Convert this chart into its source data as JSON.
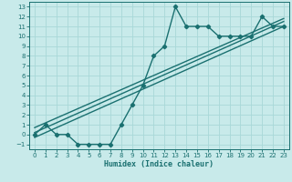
{
  "title": "",
  "xlabel": "Humidex (Indice chaleur)",
  "bg_color": "#c8eaea",
  "line_color": "#1a7070",
  "grid_color": "#a8d8d8",
  "xlim": [
    -0.5,
    23.5
  ],
  "ylim": [
    -1.5,
    13.5
  ],
  "xticks": [
    0,
    1,
    2,
    3,
    4,
    5,
    6,
    7,
    8,
    9,
    10,
    11,
    12,
    13,
    14,
    15,
    16,
    17,
    18,
    19,
    20,
    21,
    22,
    23
  ],
  "yticks": [
    -1,
    0,
    1,
    2,
    3,
    4,
    5,
    6,
    7,
    8,
    9,
    10,
    11,
    12,
    13
  ],
  "series1_x": [
    0,
    1,
    2,
    3,
    4,
    5,
    6,
    7,
    8,
    9,
    10,
    11,
    12,
    13,
    14,
    15,
    16,
    17,
    18,
    19,
    20,
    21,
    22,
    23
  ],
  "series1_y": [
    0,
    1,
    0,
    0,
    -1,
    -1,
    -1,
    -1,
    1,
    3,
    5,
    8,
    9,
    13,
    11,
    11,
    11,
    10,
    10,
    10,
    10,
    12,
    11,
    11
  ],
  "series2_x": [
    0,
    23
  ],
  "series2_y": [
    -0.3,
    11.0
  ],
  "series3_x": [
    0,
    23
  ],
  "series3_y": [
    0.2,
    11.5
  ],
  "series4_x": [
    0,
    23
  ],
  "series4_y": [
    0.7,
    11.8
  ],
  "marker": "D",
  "markersize": 2.2,
  "linewidth": 1.0
}
